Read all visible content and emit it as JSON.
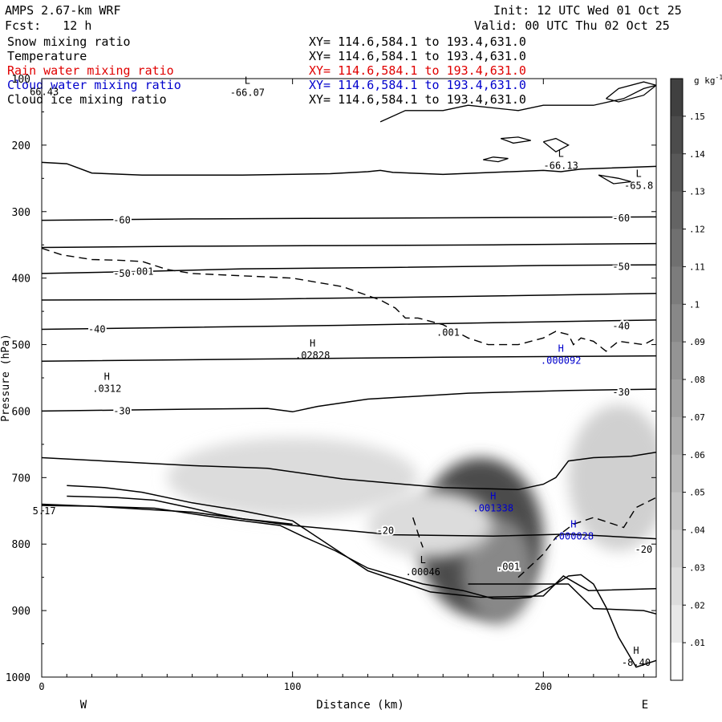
{
  "header": {
    "model": "AMPS 2.67-km WRF",
    "init": "Init: 12 UTC Wed 01 Oct 25",
    "fcst": "Fcst:   12 h",
    "valid": "Valid: 00 UTC Thu 02 Oct 25"
  },
  "fields": [
    {
      "name": "Snow mixing ratio",
      "xy": "XY= 114.6,584.1 to 193.4,631.0",
      "color": "#000000"
    },
    {
      "name": "Temperature",
      "xy": "XY= 114.6,584.1 to 193.4,631.0",
      "color": "#000000"
    },
    {
      "name": "Rain water mixing ratio",
      "xy": "XY= 114.6,584.1 to 193.4,631.0",
      "color": "#e00000"
    },
    {
      "name": "Cloud water mixing ratio",
      "xy": "XY= 114.6,584.1 to 193.4,631.0",
      "color": "#0000cc"
    },
    {
      "name": "Cloud ice mixing ratio",
      "xy": "XY= 114.6,584.1 to 193.4,631.0",
      "color": "#000000"
    }
  ],
  "colorbar": {
    "unit_base": "g kg",
    "unit_exp": "-1",
    "levels": [
      ".15",
      ".14",
      ".13",
      ".12",
      ".11",
      ".1",
      ".09",
      ".08",
      ".07",
      ".06",
      ".05",
      ".04",
      ".03",
      ".02",
      ".01"
    ],
    "colors": [
      "#404040",
      "#4c4c4c",
      "#585858",
      "#646464",
      "#707070",
      "#7c7c7c",
      "#888888",
      "#949494",
      "#a0a0a0",
      "#acacac",
      "#b8b8b8",
      "#c4c4c4",
      "#d0d0d0",
      "#dcdcdc",
      "#e8e8e8",
      "#ffffff"
    ]
  },
  "chart_data": {
    "type": "contour cross-section",
    "xlabel": "Distance (km)",
    "ylabel": "Pressure (hPa)",
    "xlim": [
      0,
      245
    ],
    "ylim": [
      1000,
      100
    ],
    "x_ticks": [
      "0",
      "100",
      "200"
    ],
    "y_ticks": [
      "100",
      "200",
      "300",
      "400",
      "500",
      "600",
      "700",
      "800",
      "900",
      "1000"
    ],
    "direction_labels": {
      "left": "W",
      "right": "E"
    },
    "temperature_labels": [
      {
        "text": "-60",
        "x": 32,
        "p": 313
      },
      {
        "text": "-60",
        "x": 231,
        "p": 310
      },
      {
        "text": "-50",
        "x": 32,
        "p": 393
      },
      {
        "text": "-50",
        "x": 231,
        "p": 383
      },
      {
        "text": "-40",
        "x": 22,
        "p": 477
      },
      {
        "text": "-40",
        "x": 231,
        "p": 472
      },
      {
        "text": "-30",
        "x": 32,
        "p": 600
      },
      {
        "text": "-30",
        "x": 231,
        "p": 572
      },
      {
        "text": "-20",
        "x": 137,
        "p": 780
      },
      {
        "text": "-20",
        "x": 240,
        "p": 808
      },
      {
        "text": ".001",
        "x": 40,
        "p": 390
      },
      {
        "text": ".001",
        "x": 162,
        "p": 482
      },
      {
        "text": ".001",
        "x": 186,
        "p": 834
      }
    ],
    "extrema": [
      {
        "marker": "L",
        "value": "-66.07",
        "x": 82,
        "p": 115,
        "color": "#000000"
      },
      {
        "marker": "L",
        "value": "-66.13",
        "x": 207,
        "p": 225,
        "color": "#000000"
      },
      {
        "marker": "L",
        "value": "-65.8",
        "x": 238,
        "p": 255,
        "color": "#000000"
      },
      {
        "marker": "H",
        "value": ".02828",
        "x": 108,
        "p": 510,
        "color": "#000000"
      },
      {
        "marker": "H",
        "value": ".0312",
        "x": 26,
        "p": 560,
        "color": "#000000"
      },
      {
        "marker": "H",
        "value": ".000092",
        "x": 207,
        "p": 518,
        "color": "#0000cc"
      },
      {
        "marker": "H",
        "value": ".001338",
        "x": 180,
        "p": 740,
        "color": "#0000cc"
      },
      {
        "marker": "H",
        "value": ".000028",
        "x": 212,
        "p": 782,
        "color": "#0000cc"
      },
      {
        "marker": "L",
        "value": ".00046",
        "x": 152,
        "p": 836,
        "color": "#000000"
      },
      {
        "marker": "H",
        "value": "-8.40",
        "x": 237,
        "p": 972,
        "color": "#000000"
      }
    ],
    "edge_values": [
      {
        "text": "66.43",
        "x": 1,
        "p": 125
      },
      {
        "text": "5.17",
        "x": 1,
        "p": 755
      }
    ],
    "isotherms": [
      [
        [
          0,
          226
        ],
        [
          10,
          228
        ],
        [
          20,
          242
        ],
        [
          40,
          245
        ],
        [
          80,
          245
        ],
        [
          115,
          243
        ],
        [
          130,
          240
        ],
        [
          135,
          238
        ],
        [
          140,
          241
        ],
        [
          160,
          244
        ],
        [
          200,
          238
        ],
        [
          207,
          240
        ],
        [
          215,
          236
        ],
        [
          245,
          232
        ]
      ],
      [
        [
          0,
          313
        ],
        [
          60,
          311
        ],
        [
          120,
          310
        ],
        [
          180,
          309
        ],
        [
          245,
          308
        ]
      ],
      [
        [
          0,
          354
        ],
        [
          60,
          352
        ],
        [
          120,
          351
        ],
        [
          180,
          350
        ],
        [
          245,
          348
        ]
      ],
      [
        [
          0,
          393
        ],
        [
          40,
          390
        ],
        [
          80,
          386
        ],
        [
          140,
          384
        ],
        [
          200,
          381
        ],
        [
          245,
          380
        ]
      ],
      [
        [
          0,
          433
        ],
        [
          80,
          432
        ],
        [
          160,
          428
        ],
        [
          245,
          423
        ]
      ],
      [
        [
          0,
          477
        ],
        [
          60,
          474
        ],
        [
          120,
          471
        ],
        [
          180,
          467
        ],
        [
          245,
          463
        ]
      ],
      [
        [
          0,
          525
        ],
        [
          80,
          522
        ],
        [
          160,
          519
        ],
        [
          245,
          517
        ]
      ],
      [
        [
          0,
          600
        ],
        [
          60,
          597
        ],
        [
          90,
          596
        ],
        [
          100,
          601
        ],
        [
          110,
          593
        ],
        [
          130,
          582
        ],
        [
          170,
          573
        ],
        [
          210,
          569
        ],
        [
          245,
          567
        ]
      ],
      [
        [
          0,
          670
        ],
        [
          60,
          682
        ],
        [
          90,
          686
        ],
        [
          120,
          702
        ],
        [
          160,
          715
        ],
        [
          190,
          718
        ],
        [
          200,
          710
        ],
        [
          205,
          700
        ],
        [
          210,
          675
        ],
        [
          220,
          670
        ],
        [
          235,
          668
        ],
        [
          245,
          662
        ]
      ],
      [
        [
          0,
          740
        ],
        [
          20,
          743
        ],
        [
          60,
          752
        ],
        [
          100,
          772
        ],
        [
          140,
          786
        ],
        [
          180,
          788
        ],
        [
          210,
          785
        ],
        [
          245,
          792
        ]
      ],
      [
        [
          10,
          712
        ],
        [
          25,
          715
        ],
        [
          40,
          722
        ],
        [
          60,
          738
        ],
        [
          80,
          750
        ],
        [
          100,
          765
        ],
        [
          130,
          840
        ],
        [
          155,
          872
        ],
        [
          175,
          880
        ],
        [
          200,
          878
        ],
        [
          208,
          848
        ],
        [
          218,
          870
        ],
        [
          245,
          867
        ]
      ],
      [
        [
          10,
          728
        ],
        [
          30,
          730
        ],
        [
          45,
          734
        ],
        [
          60,
          746
        ],
        [
          70,
          755
        ],
        [
          80,
          762
        ],
        [
          90,
          766
        ],
        [
          100,
          770
        ]
      ],
      [
        [
          170,
          860
        ],
        [
          190,
          860
        ],
        [
          210,
          860
        ],
        [
          220,
          897
        ],
        [
          240,
          900
        ],
        [
          245,
          905
        ]
      ]
    ],
    "terrain": [
      [
        0,
        742
      ],
      [
        20,
        743
      ],
      [
        45,
        746
      ],
      [
        70,
        760
      ],
      [
        95,
        772
      ],
      [
        105,
        790
      ],
      [
        117,
        810
      ],
      [
        130,
        836
      ],
      [
        152,
        860
      ],
      [
        168,
        870
      ],
      [
        180,
        882
      ],
      [
        188,
        882
      ],
      [
        195,
        880
      ],
      [
        205,
        860
      ],
      [
        210,
        848
      ],
      [
        215,
        846
      ],
      [
        220,
        860
      ],
      [
        225,
        895
      ],
      [
        230,
        940
      ],
      [
        237,
        985
      ],
      [
        245,
        975
      ]
    ],
    "dashed_contours": [
      [
        [
          0,
          355
        ],
        [
          8,
          365
        ],
        [
          20,
          372
        ],
        [
          30,
          373
        ],
        [
          40,
          375
        ],
        [
          50,
          387
        ],
        [
          60,
          393
        ],
        [
          100,
          400
        ],
        [
          120,
          413
        ],
        [
          135,
          433
        ],
        [
          141,
          445
        ],
        [
          145,
          460
        ],
        [
          150,
          460
        ],
        [
          160,
          470
        ],
        [
          165,
          480
        ],
        [
          170,
          490
        ],
        [
          178,
          500
        ],
        [
          190,
          500
        ],
        [
          200,
          490
        ],
        [
          205,
          480
        ],
        [
          210,
          485
        ],
        [
          212,
          500
        ],
        [
          215,
          490
        ],
        [
          220,
          495
        ],
        [
          225,
          510
        ],
        [
          230,
          495
        ],
        [
          240,
          500
        ],
        [
          245,
          490
        ]
      ],
      [
        [
          148,
          760
        ],
        [
          151,
          795
        ],
        [
          152,
          805
        ]
      ],
      [
        [
          190,
          850
        ],
        [
          200,
          815
        ],
        [
          205,
          790
        ],
        [
          212,
          770
        ],
        [
          220,
          760
        ],
        [
          232,
          775
        ],
        [
          237,
          745
        ],
        [
          245,
          730
        ]
      ]
    ],
    "cloud_ice_contours": [
      [
        [
          135,
          165
        ],
        [
          145,
          148
        ],
        [
          160,
          148
        ],
        [
          170,
          140
        ],
        [
          190,
          148
        ],
        [
          200,
          140
        ],
        [
          220,
          140
        ],
        [
          232,
          130
        ],
        [
          240,
          115
        ],
        [
          245,
          110
        ]
      ],
      [
        [
          225,
          130
        ],
        [
          230,
          115
        ],
        [
          240,
          105
        ],
        [
          245,
          110
        ],
        [
          240,
          125
        ],
        [
          230,
          135
        ],
        [
          225,
          130
        ]
      ],
      [
        [
          200,
          195
        ],
        [
          205,
          190
        ],
        [
          210,
          200
        ],
        [
          205,
          210
        ],
        [
          200,
          195
        ]
      ],
      [
        [
          183,
          190
        ],
        [
          190,
          188
        ],
        [
          195,
          193
        ],
        [
          188,
          197
        ],
        [
          183,
          190
        ]
      ],
      [
        [
          180,
          218
        ],
        [
          186,
          220
        ],
        [
          182,
          225
        ],
        [
          176,
          222
        ],
        [
          180,
          218
        ]
      ],
      [
        [
          222,
          245
        ],
        [
          230,
          250
        ],
        [
          235,
          255
        ],
        [
          228,
          258
        ],
        [
          222,
          245
        ]
      ]
    ],
    "shading_blobs": [
      {
        "x": 175,
        "p": 790,
        "rx": 25,
        "rp": 120,
        "level": 0.14
      },
      {
        "x": 182,
        "p": 840,
        "rx": 14,
        "rp": 80,
        "level": 0.09
      },
      {
        "x": 100,
        "p": 700,
        "rx": 50,
        "rp": 60,
        "level": 0.02
      },
      {
        "x": 230,
        "p": 700,
        "rx": 20,
        "rp": 110,
        "level": 0.03
      },
      {
        "x": 155,
        "p": 770,
        "rx": 25,
        "rp": 50,
        "level": 0.02
      }
    ]
  }
}
